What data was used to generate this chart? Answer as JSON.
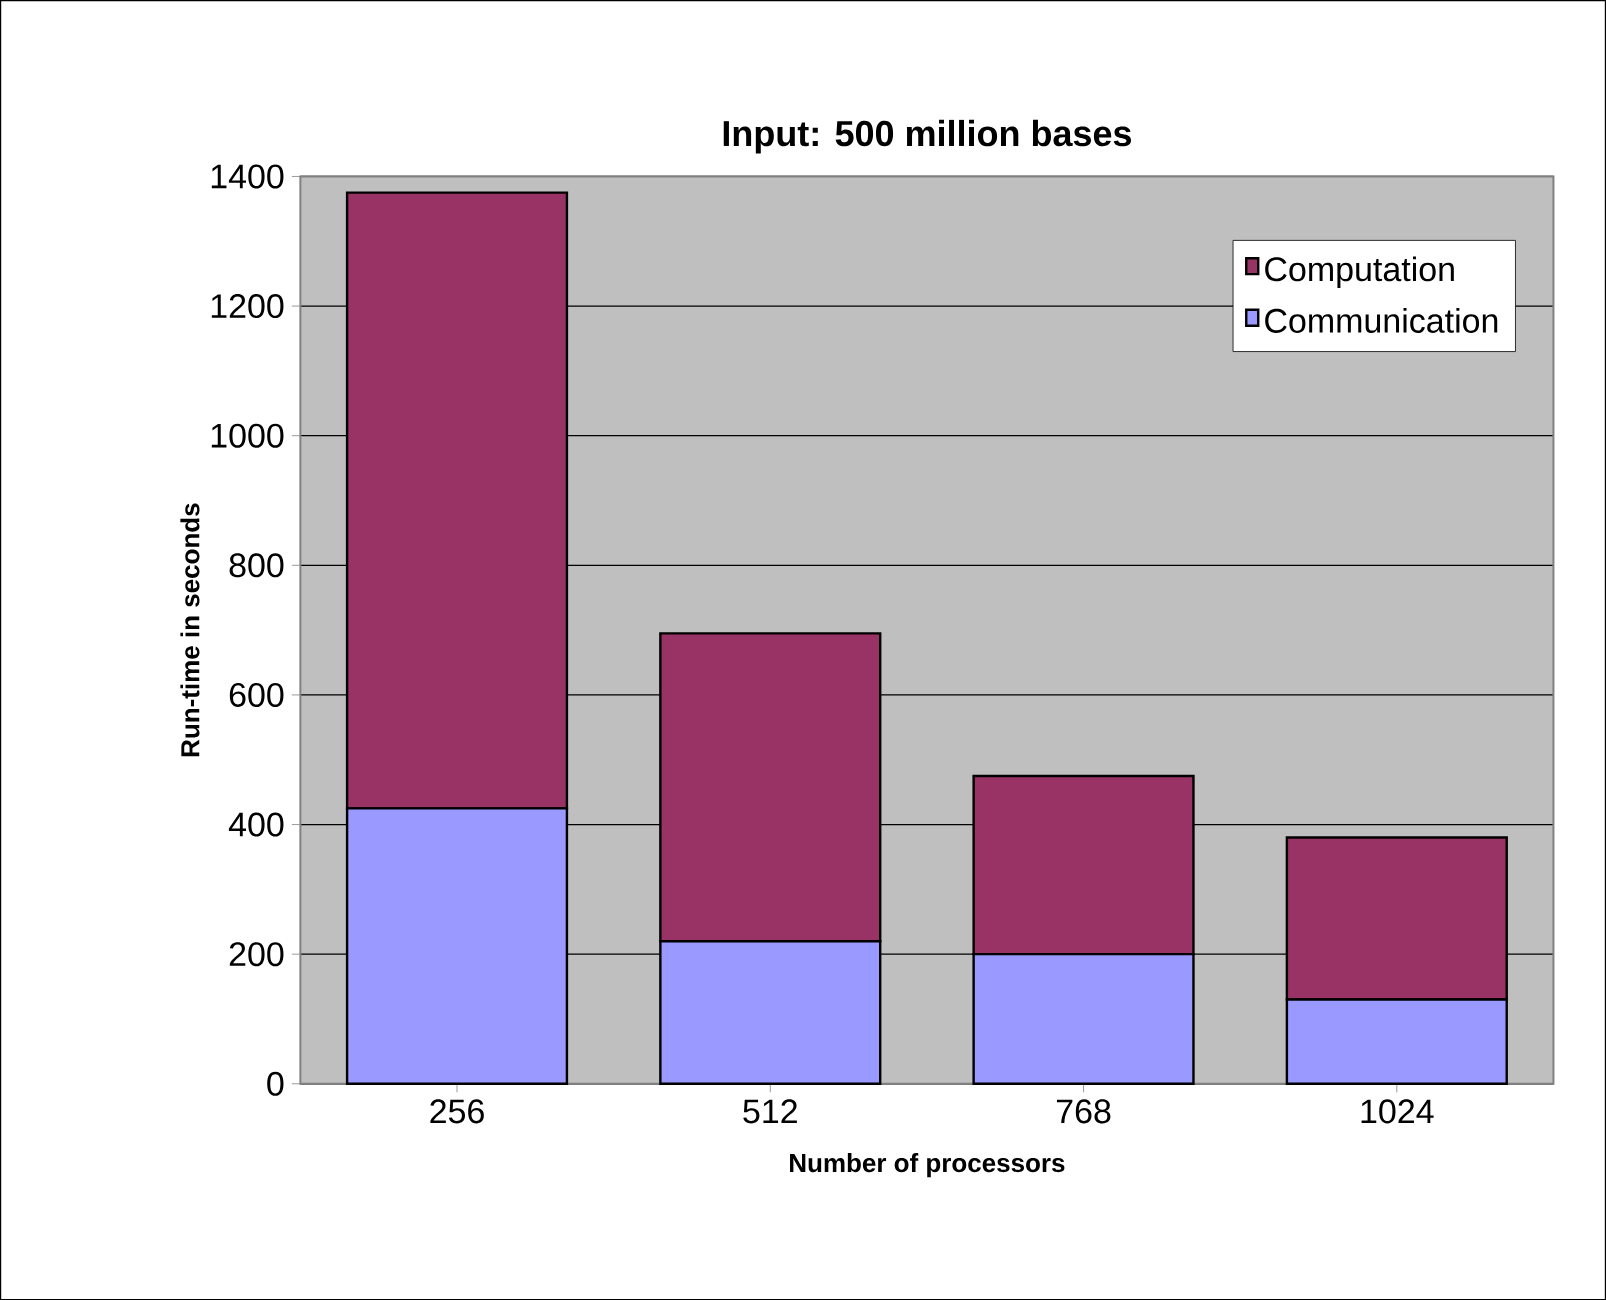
{
  "chart_data": {
    "type": "bar",
    "title": "Input: 500 million bases",
    "xlabel": "Number of processors",
    "ylabel": "Run-time in seconds",
    "categories": [
      "256",
      "512",
      "768",
      "1024"
    ],
    "stacked": true,
    "series": [
      {
        "name": "Communication",
        "color": "#9999ff",
        "values": [
          425,
          220,
          200,
          130
        ]
      },
      {
        "name": "Computation",
        "color": "#993366",
        "values": [
          950,
          475,
          275,
          250
        ]
      }
    ],
    "ylim": [
      0,
      1400
    ],
    "yticks": [
      0,
      200,
      400,
      600,
      800,
      1000,
      1200,
      1400
    ],
    "grid": "y",
    "legend": "top right"
  }
}
